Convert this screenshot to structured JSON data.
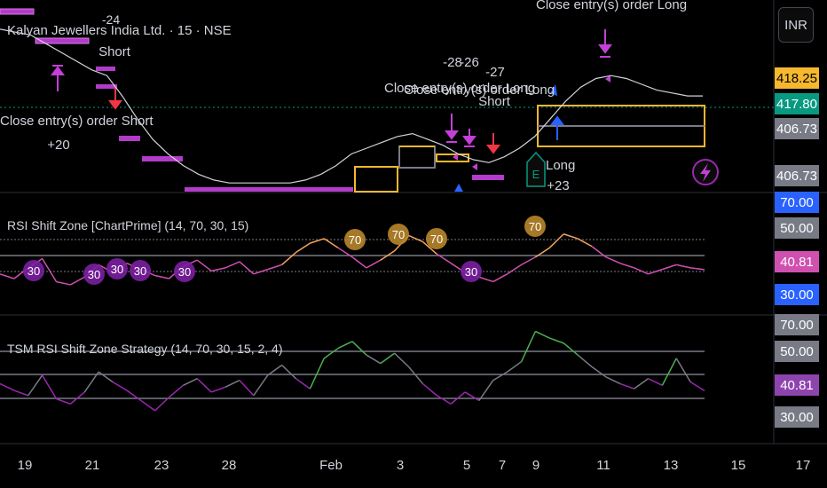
{
  "header": {
    "symbol_title": "Kalyan Jewellers India Ltd. · 15 · NSE",
    "currency_button": "INR"
  },
  "colors": {
    "background": "#000000",
    "panel_divider": "#2a2e39",
    "price_line": "#d1d4dc",
    "trade_purple": "#c43fd8",
    "trade_magenta": "#d81ea8",
    "zone_gold": "#f5b82e",
    "short_red": "#f23645",
    "long_blue": "#2962ff",
    "rsi_orange": "#f7a35c",
    "rsi_purple": "#9c27b0",
    "green": "#4caf50",
    "gray_line": "#787b86"
  },
  "price_pane": {
    "axis_tags": [
      {
        "label": "418.25",
        "bg": "#f5b82e",
        "fg": "#000000"
      },
      {
        "label": "417.80",
        "bg": "#089981",
        "fg": "#ffffff"
      },
      {
        "label": "406.73",
        "bg": "#787b86",
        "fg": "#ffffff"
      },
      {
        "label": "406.73",
        "bg": "#787b86",
        "fg": "#ffffff"
      }
    ],
    "annotations": [
      {
        "text": "-24",
        "kind": "profit"
      },
      {
        "text": "Short",
        "kind": "label"
      },
      {
        "text": "Close entry(s) order Short",
        "kind": "label"
      },
      {
        "text": "+20",
        "kind": "profit"
      },
      {
        "text": "-28",
        "kind": "profit"
      },
      {
        "text": "-26",
        "kind": "profit"
      },
      {
        "text": "-27",
        "kind": "profit"
      },
      {
        "text": "Close entry(s) order Long",
        "kind": "label"
      },
      {
        "text": "Close entry(s) order Long",
        "kind": "label"
      },
      {
        "text": "Short",
        "kind": "label"
      },
      {
        "text": "Close entry(s) order Long",
        "kind": "label"
      },
      {
        "text": "Long",
        "kind": "label"
      },
      {
        "text": "+23",
        "kind": "profit"
      },
      {
        "text": "E",
        "kind": "badge"
      }
    ]
  },
  "rsi_pane": {
    "title": "RSI Shift Zone [ChartPrime] (14, 70, 30, 15)",
    "axis_tags": [
      {
        "label": "70.00",
        "bg": "#2962ff",
        "fg": "#ffffff"
      },
      {
        "label": "50.00",
        "bg": "#787b86",
        "fg": "#ffffff"
      },
      {
        "label": "40.81",
        "bg": "#d050b0",
        "fg": "#ffffff"
      },
      {
        "label": "30.00",
        "bg": "#2962ff",
        "fg": "#ffffff"
      }
    ],
    "markers": [
      {
        "text": "30",
        "kind": "low"
      },
      {
        "text": "30",
        "kind": "low"
      },
      {
        "text": "30",
        "kind": "low"
      },
      {
        "text": "30",
        "kind": "low"
      },
      {
        "text": "30",
        "kind": "low"
      },
      {
        "text": "70",
        "kind": "high"
      },
      {
        "text": "70",
        "kind": "high"
      },
      {
        "text": "70",
        "kind": "high"
      },
      {
        "text": "30",
        "kind": "low"
      },
      {
        "text": "70",
        "kind": "high"
      }
    ]
  },
  "strategy_pane": {
    "title": "TSM RSI Shift Zone Strategy (14, 70, 30, 15, 2, 4)",
    "axis_tags": [
      {
        "label": "70.00",
        "bg": "#787b86",
        "fg": "#ffffff"
      },
      {
        "label": "50.00",
        "bg": "#787b86",
        "fg": "#ffffff"
      },
      {
        "label": "40.81",
        "bg": "#8e44ad",
        "fg": "#ffffff"
      },
      {
        "label": "30.00",
        "bg": "#787b86",
        "fg": "#ffffff"
      }
    ]
  },
  "time_axis": {
    "labels": [
      "19",
      "21",
      "23",
      "28",
      "Feb",
      "3",
      "5",
      "7",
      "9",
      "11",
      "13",
      "15",
      "17"
    ]
  },
  "chart_data": [
    {
      "type": "line",
      "series": [
        {
          "values": [
            441,
            440,
            439,
            436,
            433,
            430,
            427,
            425,
            418,
            410,
            403,
            398,
            394,
            391,
            389,
            388,
            388,
            388,
            388,
            388,
            389,
            391,
            394,
            398,
            400,
            402,
            404,
            405,
            403,
            401,
            398,
            396,
            395,
            397,
            400,
            404,
            410,
            416,
            421,
            424,
            425,
            424,
            422,
            420,
            419,
            418,
            418
          ]
        }
      ],
      "y_ticks_right": [
        "418.25",
        "417.80",
        "406.73",
        "406.73"
      ],
      "ylim": [
        385,
        448
      ]
    },
    {
      "type": "line",
      "title": "RSI Shift Zone [ChartPrime] (14, 70, 30, 15)",
      "series": [
        {
          "values": [
            38,
            35,
            42,
            48,
            33,
            31,
            36,
            44,
            39,
            45,
            41,
            37,
            35,
            43,
            47,
            40,
            42,
            46,
            38,
            41,
            44,
            52,
            58,
            61,
            55,
            49,
            42,
            47,
            53,
            63,
            59,
            51,
            45,
            39,
            36,
            33,
            38,
            44,
            49,
            55,
            64,
            61,
            56,
            49,
            45,
            42,
            38,
            41,
            44,
            42,
            40.81
          ]
        }
      ],
      "levels": [
        70,
        50,
        30
      ],
      "ylim": [
        20,
        80
      ]
    },
    {
      "type": "line",
      "title": "TSM RSI Shift Zone Strategy (14, 70, 30, 15, 2, 4)",
      "series": [
        {
          "values": [
            45,
            41,
            38,
            50,
            36,
            33,
            40,
            52,
            46,
            41,
            35,
            29,
            37,
            44,
            48,
            40,
            43,
            47,
            38,
            50,
            56,
            48,
            42,
            60,
            66,
            70,
            62,
            57,
            63,
            55,
            45,
            38,
            33,
            40,
            35,
            47,
            52,
            58,
            76,
            72,
            69,
            62,
            55,
            49,
            45,
            42,
            48,
            44,
            60,
            46,
            40.81
          ]
        }
      ],
      "levels": [
        70,
        50,
        30
      ],
      "ylim": [
        20,
        82
      ]
    }
  ]
}
